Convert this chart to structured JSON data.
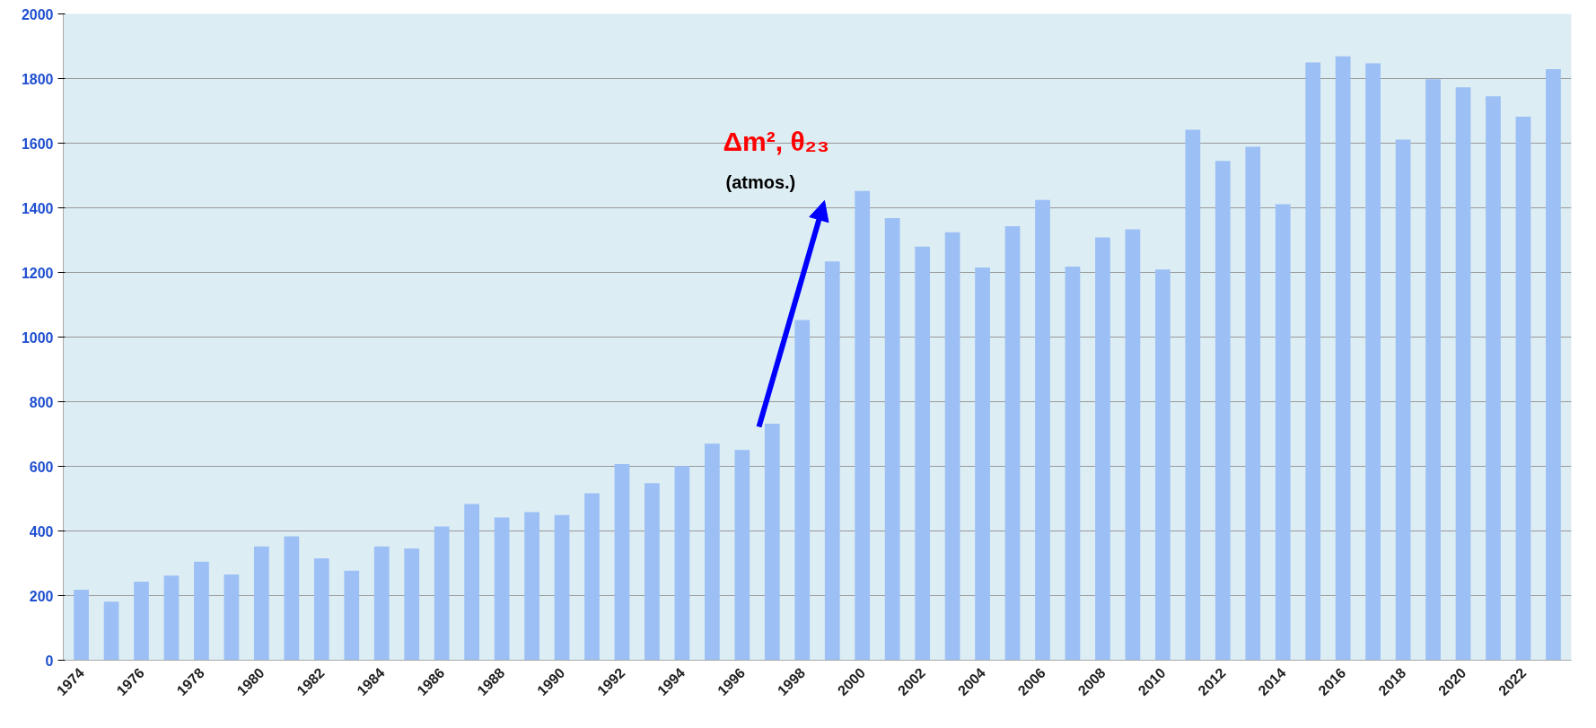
{
  "chart_data": {
    "type": "bar",
    "categories": [
      "1974",
      null,
      "1976",
      null,
      "1978",
      null,
      "1980",
      null,
      "1982",
      null,
      "1984",
      null,
      "1986",
      null,
      "1988",
      null,
      "1990",
      null,
      "1992",
      null,
      "1994",
      null,
      "1996",
      null,
      "1998",
      null,
      "2000",
      null,
      "2002",
      null,
      "2004",
      null,
      "2006",
      null,
      "2008",
      null,
      "2010",
      null,
      "2012",
      null,
      "2014",
      null,
      "2016",
      null,
      "2018",
      null,
      "2020",
      null,
      "2022",
      null
    ],
    "values": [
      218,
      181,
      243,
      262,
      305,
      265,
      352,
      383,
      315,
      277,
      352,
      346,
      414,
      483,
      442,
      458,
      449,
      517,
      607,
      548,
      601,
      670,
      651,
      732,
      1053,
      1234,
      1452,
      1368,
      1280,
      1324,
      1215,
      1343,
      1424,
      1218,
      1308,
      1333,
      1209,
      1642,
      1545,
      1589,
      1411,
      1850,
      1869,
      1847,
      1611,
      1798,
      1773,
      1745,
      1682,
      1829
    ],
    "color": "#9cc0f5",
    "ylim": [
      0,
      2000
    ],
    "yticks": [
      0,
      200,
      400,
      600,
      800,
      1000,
      1200,
      1400,
      1600,
      1800,
      2000
    ],
    "grid": "y",
    "annotations": [
      "Δm², θ₂₃",
      "(atmos.)"
    ]
  }
}
